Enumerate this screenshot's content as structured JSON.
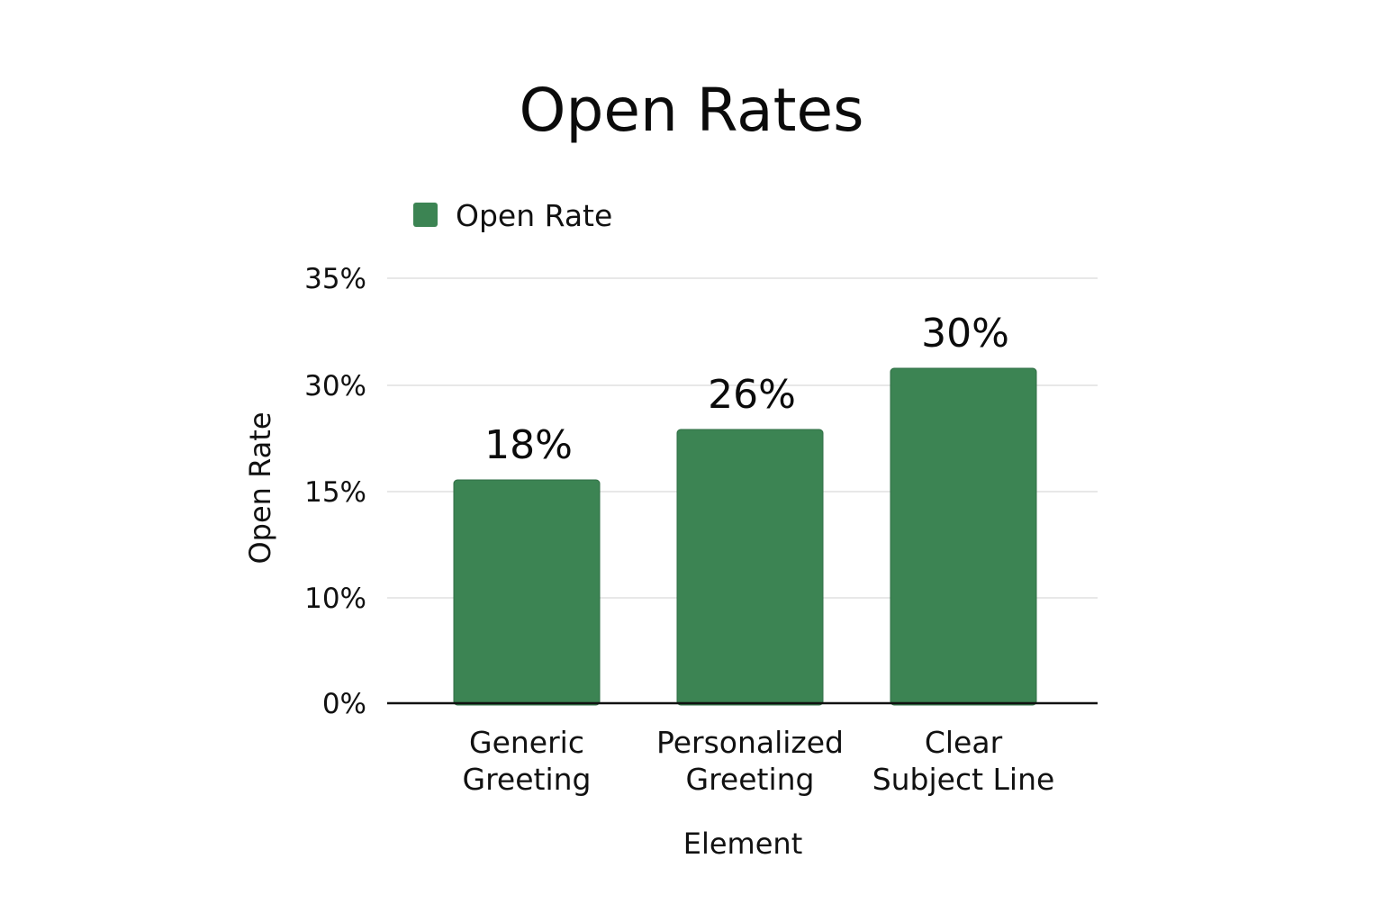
{
  "chart_data": {
    "type": "bar",
    "title": "Open Rates",
    "xlabel": "Element",
    "ylabel": "Open Rate",
    "categories": [
      "Generic Greeting",
      "Personalized Greeting",
      "Clear Subject Line"
    ],
    "category_lines": [
      [
        "Generic",
        "Greeting"
      ],
      [
        "Personalized",
        "Greeting"
      ],
      [
        "Clear",
        "Subject Line"
      ]
    ],
    "series": [
      {
        "name": "Open Rate",
        "color": "#3c8453",
        "values": [
          18,
          26,
          30
        ]
      }
    ],
    "value_labels": [
      "18%",
      "26%",
      "30%"
    ],
    "y_ticks": [
      {
        "value": 0,
        "label": "0%"
      },
      {
        "value": 10,
        "label": "10%"
      },
      {
        "value": 15,
        "label": "15%"
      },
      {
        "value": 30,
        "label": "30%"
      },
      {
        "value": 35,
        "label": "35%"
      }
    ],
    "grid": true,
    "legend_position": "top-left"
  }
}
